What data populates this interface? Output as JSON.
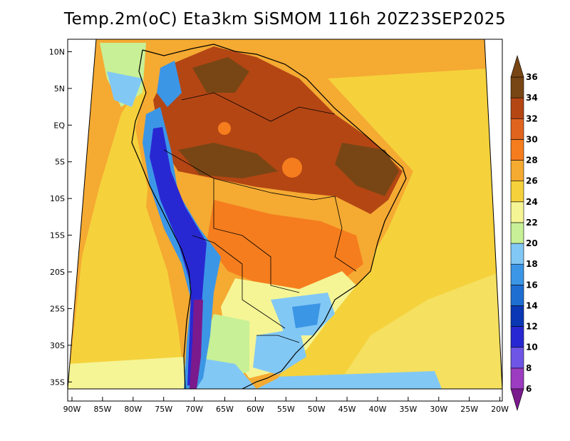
{
  "chart_data": {
    "type": "heatmap",
    "title": "Temp.2m(oC) Eta3km SiSMOM 116h 20Z23SEP2025",
    "variable": "2 m air temperature",
    "units": "oC",
    "model": "Eta3km SiSMOM",
    "forecast_hour": "116h",
    "valid_time": "20Z23SEP2025",
    "x_axis": {
      "ticks": [
        -90,
        -85,
        -80,
        -75,
        -70,
        -65,
        -60,
        -55,
        -50,
        -45,
        -40,
        -35,
        -30,
        -25,
        -20
      ],
      "labels": [
        "90W",
        "85W",
        "80W",
        "75W",
        "70W",
        "65W",
        "60W",
        "55W",
        "50W",
        "45W",
        "40W",
        "35W",
        "30W",
        "25W",
        "20W"
      ],
      "range": [
        -90.7,
        -19.6
      ]
    },
    "y_axis": {
      "ticks": [
        10,
        5,
        0,
        -5,
        -10,
        -15,
        -20,
        -25,
        -30,
        -35
      ],
      "labels": [
        "10N",
        "5N",
        "EQ",
        "5S",
        "10S",
        "15S",
        "20S",
        "25S",
        "30S",
        "35S"
      ],
      "range": [
        -37.6,
        11.7
      ]
    },
    "colorbar": {
      "levels": [
        6,
        8,
        10,
        12,
        14,
        16,
        18,
        20,
        22,
        24,
        26,
        28,
        30,
        32,
        34,
        36
      ],
      "labels": [
        "6",
        "8",
        "10",
        "12",
        "14",
        "16",
        "18",
        "20",
        "22",
        "24",
        "26",
        "28",
        "30",
        "32",
        "34",
        "36"
      ],
      "colors": [
        "#7a1a8c",
        "#9c3cc0",
        "#6e55e6",
        "#2828d2",
        "#0a37b4",
        "#1e6ed2",
        "#3c96e6",
        "#82c8f5",
        "#c8f096",
        "#f5f596",
        "#f5d23c",
        "#f5aa32",
        "#f57d1e",
        "#e1641e",
        "#b44614",
        "#784614"
      ],
      "extend": "both",
      "under_color": "#3c0a64",
      "over_color": "#502814"
    }
  }
}
